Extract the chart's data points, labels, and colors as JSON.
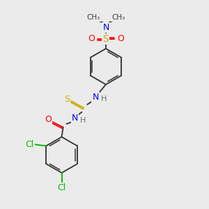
{
  "bg_color": "#ebebeb",
  "atom_colors": {
    "C": "#3d3d3d",
    "N": "#0000ff",
    "O": "#ff0000",
    "S_thio": "#ccaa00",
    "S_sulfonyl": "#ccaa00",
    "Cl": "#00bb00",
    "H": "#707070"
  },
  "bond_color": "#3d3d3d",
  "bond_lw": 1.4,
  "figsize": [
    3.0,
    3.0
  ],
  "dpi": 100,
  "xlim": [
    0,
    300
  ],
  "ylim": [
    0,
    300
  ]
}
